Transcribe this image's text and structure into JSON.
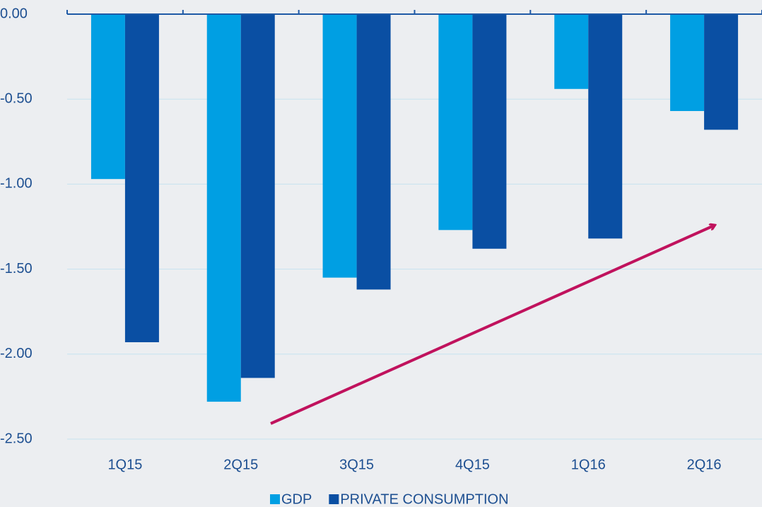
{
  "chart_data": {
    "type": "bar",
    "categories": [
      "1Q15",
      "2Q15",
      "3Q15",
      "4Q15",
      "1Q16",
      "2Q16"
    ],
    "series": [
      {
        "name": "GDP",
        "color": "#009fe3",
        "values": [
          -0.97,
          -2.28,
          -1.55,
          -1.27,
          -0.44,
          -0.57
        ]
      },
      {
        "name": "PRIVATE CONSUMPTION",
        "color": "#0a4fa3",
        "values": [
          -1.93,
          -2.14,
          -1.62,
          -1.38,
          -1.32,
          -0.68
        ]
      }
    ],
    "ylim": [
      -2.5,
      0
    ],
    "yticks": [
      {
        "value": 0,
        "label": "0.00"
      },
      {
        "value": -0.5,
        "label": "-0.50"
      },
      {
        "value": -1,
        "label": "-1.00"
      },
      {
        "value": -1.5,
        "label": "-1.50"
      },
      {
        "value": -2,
        "label": "-2.00"
      },
      {
        "value": -2.5,
        "label": "-2.50"
      }
    ],
    "grid": true,
    "legend": "bottom"
  }
}
